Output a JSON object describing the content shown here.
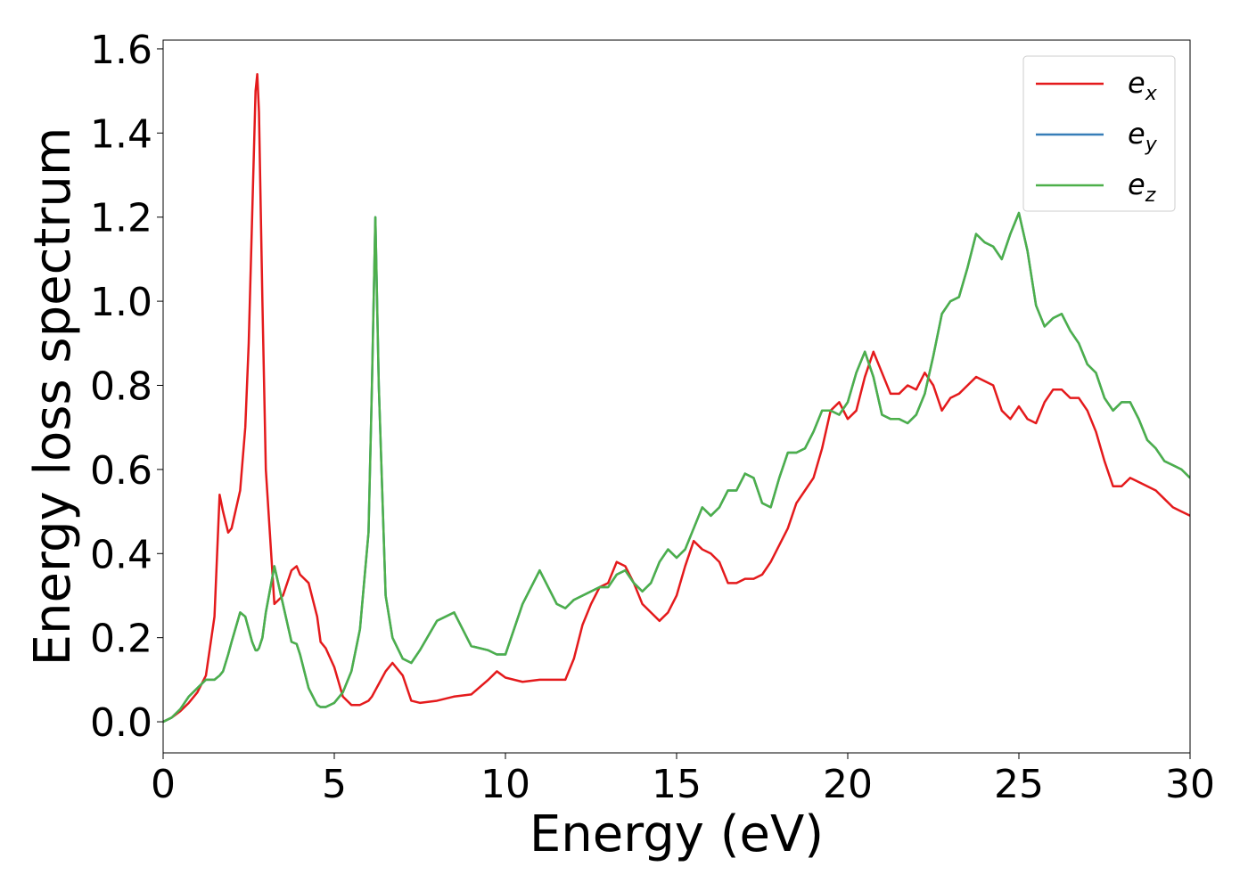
{
  "chart_data": {
    "type": "line",
    "xlabel": "Energy (eV)",
    "ylabel": "Energy loss spectrum",
    "xlim": [
      0,
      30
    ],
    "ylim": [
      -0.074,
      1.621
    ],
    "xticks": [
      0,
      5,
      10,
      15,
      20,
      25,
      30
    ],
    "yticks": [
      {
        "value": 0,
        "label": "0.0"
      },
      {
        "value": 0.2,
        "label": "0.2"
      },
      {
        "value": 0.4,
        "label": "0.4"
      },
      {
        "value": 0.6,
        "label": "0.6"
      },
      {
        "value": 0.8,
        "label": "0.8"
      },
      {
        "value": 1.0,
        "label": "1.0"
      },
      {
        "value": 1.2,
        "label": "1.2"
      },
      {
        "value": 1.4,
        "label": "1.4"
      },
      {
        "value": 1.6,
        "label": "1.6"
      }
    ],
    "legend": "upper right",
    "x": [
      0,
      0.25,
      0.5,
      0.75,
      1,
      1.25,
      1.5,
      1.65,
      1.75,
      1.9,
      2,
      2.25,
      2.4,
      2.5,
      2.6,
      2.7,
      2.75,
      2.8,
      2.9,
      3,
      3.25,
      3.5,
      3.75,
      3.9,
      4,
      4.25,
      4.5,
      4.6,
      4.75,
      5,
      5.25,
      5.5,
      5.75,
      6,
      6.1,
      6.2,
      6.3,
      6.5,
      6.7,
      7,
      7.25,
      7.5,
      8,
      8.5,
      9,
      9.5,
      9.75,
      10,
      10.5,
      11,
      11.5,
      11.75,
      12,
      12.25,
      12.5,
      12.75,
      13,
      13.25,
      13.5,
      13.75,
      14,
      14.25,
      14.5,
      14.75,
      15,
      15.25,
      15.5,
      15.75,
      16,
      16.25,
      16.5,
      16.75,
      17,
      17.25,
      17.5,
      17.75,
      18,
      18.25,
      18.5,
      18.75,
      19,
      19.25,
      19.5,
      19.75,
      20,
      20.25,
      20.5,
      20.75,
      21,
      21.25,
      21.5,
      21.75,
      22,
      22.25,
      22.5,
      22.75,
      23,
      23.25,
      23.5,
      23.75,
      24,
      24.25,
      24.5,
      24.75,
      25,
      25.25,
      25.5,
      25.75,
      26,
      26.25,
      26.5,
      26.75,
      27,
      27.25,
      27.5,
      27.75,
      28,
      28.25,
      28.5,
      28.75,
      29,
      29.25,
      29.5,
      29.75,
      30
    ],
    "series": [
      {
        "name": "ex",
        "color": "#e41a1c",
        "values": [
          0,
          0.01,
          0.025,
          0.045,
          0.07,
          0.11,
          0.25,
          0.54,
          0.5,
          0.45,
          0.46,
          0.55,
          0.7,
          0.9,
          1.2,
          1.5,
          1.54,
          1.45,
          1.0,
          0.6,
          0.28,
          0.3,
          0.36,
          0.37,
          0.35,
          0.33,
          0.25,
          0.19,
          0.175,
          0.13,
          0.06,
          0.04,
          0.04,
          0.05,
          0.06,
          0.075,
          0.09,
          0.12,
          0.14,
          0.11,
          0.05,
          0.045,
          0.05,
          0.06,
          0.065,
          0.1,
          0.12,
          0.105,
          0.095,
          0.1,
          0.1,
          0.1,
          0.15,
          0.23,
          0.28,
          0.32,
          0.33,
          0.38,
          0.37,
          0.33,
          0.28,
          0.26,
          0.24,
          0.26,
          0.3,
          0.37,
          0.43,
          0.41,
          0.4,
          0.38,
          0.33,
          0.33,
          0.34,
          0.34,
          0.35,
          0.38,
          0.42,
          0.46,
          0.52,
          0.55,
          0.58,
          0.65,
          0.74,
          0.76,
          0.72,
          0.74,
          0.82,
          0.88,
          0.83,
          0.78,
          0.78,
          0.8,
          0.79,
          0.83,
          0.8,
          0.74,
          0.77,
          0.78,
          0.8,
          0.82,
          0.81,
          0.8,
          0.74,
          0.72,
          0.75,
          0.72,
          0.71,
          0.76,
          0.79,
          0.79,
          0.77,
          0.77,
          0.74,
          0.69,
          0.62,
          0.56,
          0.56,
          0.58,
          0.57,
          0.56,
          0.55,
          0.53,
          0.51,
          0.5,
          0.49
        ]
      },
      {
        "name": "ey",
        "color": "#377eb8",
        "values": [
          0,
          0.01,
          0.03,
          0.06,
          0.08,
          0.1,
          0.1,
          0.11,
          0.12,
          0.16,
          0.19,
          0.26,
          0.25,
          0.22,
          0.19,
          0.17,
          0.17,
          0.175,
          0.2,
          0.26,
          0.37,
          0.28,
          0.19,
          0.185,
          0.16,
          0.08,
          0.04,
          0.035,
          0.035,
          0.045,
          0.07,
          0.12,
          0.22,
          0.45,
          0.8,
          1.2,
          0.8,
          0.3,
          0.2,
          0.15,
          0.14,
          0.17,
          0.24,
          0.26,
          0.18,
          0.17,
          0.16,
          0.16,
          0.28,
          0.36,
          0.28,
          0.27,
          0.29,
          0.3,
          0.31,
          0.32,
          0.32,
          0.35,
          0.36,
          0.33,
          0.31,
          0.33,
          0.38,
          0.41,
          0.39,
          0.41,
          0.46,
          0.51,
          0.49,
          0.51,
          0.55,
          0.55,
          0.59,
          0.58,
          0.52,
          0.51,
          0.58,
          0.64,
          0.64,
          0.65,
          0.69,
          0.74,
          0.74,
          0.73,
          0.76,
          0.83,
          0.88,
          0.82,
          0.73,
          0.72,
          0.72,
          0.71,
          0.73,
          0.78,
          0.87,
          0.97,
          1.0,
          1.01,
          1.08,
          1.16,
          1.14,
          1.13,
          1.1,
          1.16,
          1.21,
          1.12,
          0.99,
          0.94,
          0.96,
          0.97,
          0.93,
          0.9,
          0.85,
          0.83,
          0.77,
          0.74,
          0.76,
          0.76,
          0.72,
          0.67,
          0.65,
          0.62,
          0.61,
          0.6,
          0.58
        ]
      },
      {
        "name": "ez",
        "color": "#4daf4a",
        "values": [
          0,
          0.01,
          0.03,
          0.06,
          0.08,
          0.1,
          0.1,
          0.11,
          0.12,
          0.16,
          0.19,
          0.26,
          0.25,
          0.22,
          0.19,
          0.17,
          0.17,
          0.175,
          0.2,
          0.26,
          0.37,
          0.28,
          0.19,
          0.185,
          0.16,
          0.08,
          0.04,
          0.035,
          0.035,
          0.045,
          0.07,
          0.12,
          0.22,
          0.45,
          0.8,
          1.2,
          0.8,
          0.3,
          0.2,
          0.15,
          0.14,
          0.17,
          0.24,
          0.26,
          0.18,
          0.17,
          0.16,
          0.16,
          0.28,
          0.36,
          0.28,
          0.27,
          0.29,
          0.3,
          0.31,
          0.32,
          0.32,
          0.35,
          0.36,
          0.33,
          0.31,
          0.33,
          0.38,
          0.41,
          0.39,
          0.41,
          0.46,
          0.51,
          0.49,
          0.51,
          0.55,
          0.55,
          0.59,
          0.58,
          0.52,
          0.51,
          0.58,
          0.64,
          0.64,
          0.65,
          0.69,
          0.74,
          0.74,
          0.73,
          0.76,
          0.83,
          0.88,
          0.82,
          0.73,
          0.72,
          0.72,
          0.71,
          0.73,
          0.78,
          0.87,
          0.97,
          1.0,
          1.01,
          1.08,
          1.16,
          1.14,
          1.13,
          1.1,
          1.16,
          1.21,
          1.12,
          0.99,
          0.94,
          0.96,
          0.97,
          0.93,
          0.9,
          0.85,
          0.83,
          0.77,
          0.74,
          0.76,
          0.76,
          0.72,
          0.67,
          0.65,
          0.62,
          0.61,
          0.6,
          0.58
        ]
      }
    ]
  }
}
